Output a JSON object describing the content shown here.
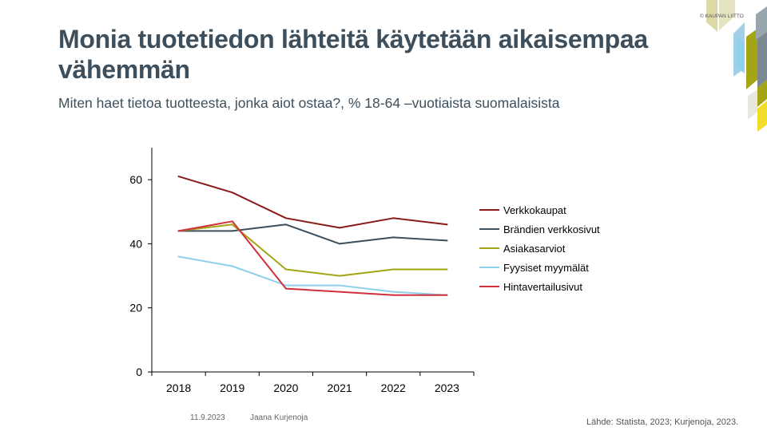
{
  "header": {
    "title": "Monia tuotetiedon lähteitä käytetään aikaisempaa vähemmän",
    "subtitle": "Miten haet tietoa tuotteesta, jonka aiot ostaa?, % 18-64 –vuotiaista suomalaisista"
  },
  "brand": {
    "logo_text": "© KAUPAN LIITTO"
  },
  "footer": {
    "date": "11.9.2023",
    "author": "Jaana Kurjenoja",
    "source": "Lähde: Statista, 2023; Kurjenoja, 2023."
  },
  "chart_data": {
    "type": "line",
    "title": "",
    "xlabel": "",
    "ylabel": "",
    "x": [
      "2018",
      "2019",
      "2020",
      "2021",
      "2022",
      "2023"
    ],
    "ylim": [
      0,
      70
    ],
    "yticks": [
      0,
      20,
      40,
      60
    ],
    "grid": false,
    "legend_position": "right",
    "series": [
      {
        "name": "Verkkokaupat",
        "color": "#8b1a1a",
        "values": [
          61,
          56,
          48,
          45,
          48,
          46
        ]
      },
      {
        "name": "Brändien verkkosivut",
        "color": "#3d4f5c",
        "values": [
          44,
          44,
          46,
          40,
          42,
          41
        ]
      },
      {
        "name": "Asiakasarviot",
        "color": "#a3a515",
        "values": [
          44,
          46,
          32,
          30,
          32,
          32
        ]
      },
      {
        "name": "Fyysiset myymälät",
        "color": "#8fd0ec",
        "values": [
          36,
          33,
          27,
          27,
          25,
          24
        ]
      },
      {
        "name": "Hintavertailusivut",
        "color": "#d12f3a",
        "values": [
          44,
          47,
          26,
          25,
          24,
          24
        ]
      }
    ]
  }
}
